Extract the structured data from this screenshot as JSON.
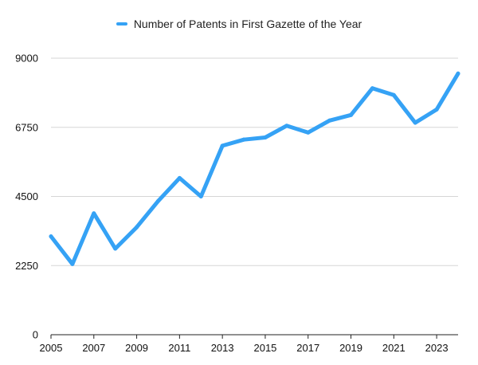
{
  "chart_data": {
    "type": "line",
    "title": "",
    "xlabel": "",
    "ylabel": "",
    "x": [
      2005,
      2006,
      2007,
      2008,
      2009,
      2010,
      2011,
      2012,
      2013,
      2014,
      2015,
      2016,
      2017,
      2018,
      2019,
      2020,
      2021,
      2022,
      2023,
      2024
    ],
    "series": [
      {
        "name": "Number of Patents in First Gazette of the Year",
        "color": "#35a2f5",
        "values": [
          3200,
          2300,
          3950,
          2800,
          3500,
          4350,
          5100,
          4500,
          6150,
          6350,
          6420,
          6800,
          6580,
          6970,
          7150,
          8020,
          7800,
          6900,
          7330,
          8500
        ]
      }
    ],
    "x_ticks": [
      "2005",
      "2007",
      "2009",
      "2011",
      "2013",
      "2015",
      "2017",
      "2019",
      "2021",
      "2023"
    ],
    "y_ticks": [
      "0",
      "2250",
      "4500",
      "6750",
      "9000"
    ],
    "ylim": [
      0,
      9000
    ],
    "xlim": [
      2005,
      2024
    ],
    "grid": "horizontal",
    "legend_position": "top-center"
  }
}
